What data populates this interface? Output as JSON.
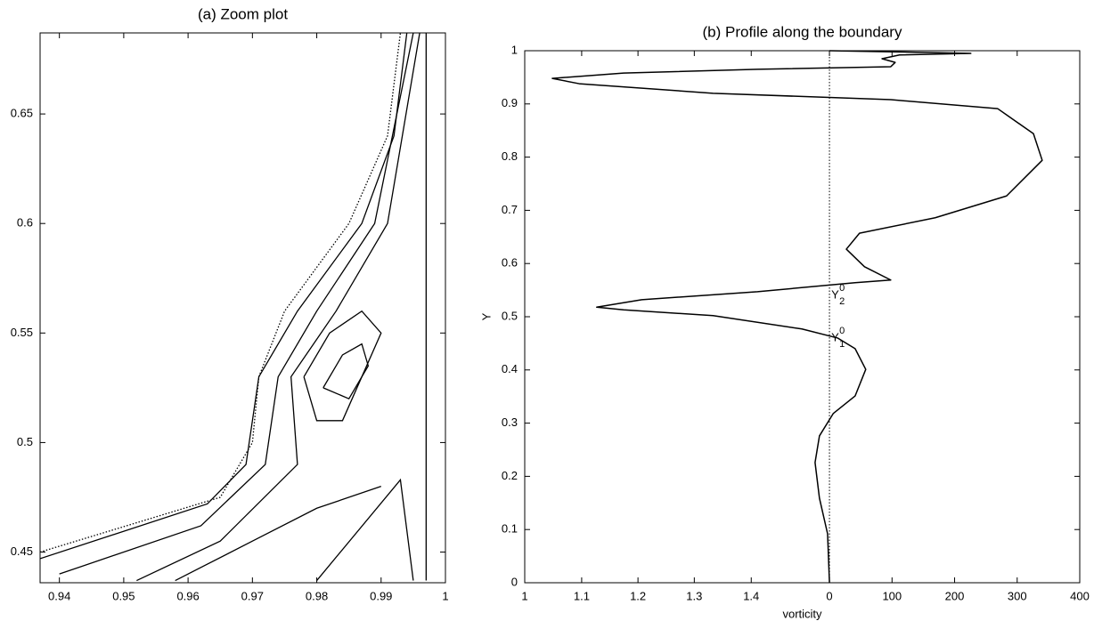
{
  "chart_data": [
    {
      "type": "contour",
      "title": "(a) Zoom plot",
      "xlim": [
        0.937,
        1.0
      ],
      "xticks": [
        0.94,
        0.95,
        0.96,
        0.97,
        0.98,
        0.99,
        1
      ],
      "ylim": [
        0.436,
        0.687
      ],
      "yticks": [
        0.45,
        0.5,
        0.55,
        0.6,
        0.65
      ],
      "color": "#000000",
      "contours": [
        {
          "style": "dotted",
          "x": [
            0.937,
            0.965,
            0.97,
            0.971,
            0.975,
            0.985,
            0.991,
            0.993
          ],
          "y": [
            0.45,
            0.475,
            0.5,
            0.53,
            0.56,
            0.6,
            0.64,
            0.687
          ]
        },
        {
          "style": "solid",
          "x": [
            0.937,
            0.963,
            0.969,
            0.971,
            0.977,
            0.987,
            0.992,
            0.994
          ],
          "y": [
            0.447,
            0.472,
            0.49,
            0.53,
            0.56,
            0.6,
            0.64,
            0.687
          ]
        },
        {
          "style": "solid",
          "x": [
            0.94,
            0.962,
            0.972,
            0.974,
            0.98,
            0.989,
            0.995
          ],
          "y": [
            0.44,
            0.462,
            0.49,
            0.53,
            0.56,
            0.6,
            0.687
          ]
        },
        {
          "style": "solid",
          "x": [
            0.952,
            0.965,
            0.977,
            0.976,
            0.983,
            0.991,
            0.996
          ],
          "y": [
            0.437,
            0.455,
            0.49,
            0.53,
            0.56,
            0.6,
            0.687
          ]
        },
        {
          "style": "solid",
          "x": [
            0.958,
            0.97,
            0.98,
            0.99
          ],
          "y": [
            0.437,
            0.455,
            0.47,
            0.48
          ]
        },
        {
          "style": "solid",
          "x": [
            0.978,
            0.982,
            0.987,
            0.99,
            0.987,
            0.984,
            0.98,
            0.978
          ],
          "y": [
            0.53,
            0.55,
            0.56,
            0.55,
            0.53,
            0.51,
            0.51,
            0.53
          ]
        },
        {
          "style": "solid",
          "x": [
            0.981,
            0.984,
            0.987,
            0.988,
            0.985,
            0.981
          ],
          "y": [
            0.525,
            0.54,
            0.545,
            0.535,
            0.52,
            0.525
          ]
        },
        {
          "style": "solid",
          "x": [
            0.98,
            0.993,
            0.995
          ],
          "y": [
            0.437,
            0.483,
            0.437
          ]
        },
        {
          "style": "solid",
          "x": [
            0.997,
            0.997
          ],
          "y": [
            0.437,
            0.687
          ]
        }
      ]
    },
    {
      "type": "line",
      "title": "(b) Profile along the boundary",
      "xlabel": "vorticity",
      "ylabel": "Y",
      "xlim": [
        -487,
        400
      ],
      "xticks": [
        {
          "value": -487,
          "label": "1"
        },
        {
          "value": -396,
          "label": "1.1"
        },
        {
          "value": -306,
          "label": "1.2"
        },
        {
          "value": -216,
          "label": "1.3"
        },
        {
          "value": -125,
          "label": "1.4"
        },
        0,
        100,
        200,
        300,
        400
      ],
      "ylim": [
        0,
        1
      ],
      "yticks": [
        0,
        0.1,
        0.2,
        0.3,
        0.4,
        0.5,
        0.6,
        0.7,
        0.8,
        0.9,
        1
      ],
      "color": "#000000",
      "vline": 0,
      "x": [
        0,
        -3,
        -16,
        -23,
        -16,
        6,
        41,
        58,
        41,
        13,
        -44,
        -186,
        -329,
        -372,
        -300,
        -115,
        41,
        98,
        56,
        27,
        48,
        169,
        283,
        340,
        326,
        269,
        98,
        -186,
        -400,
        -443,
        -329,
        -115,
        98,
        105,
        84,
        112,
        226,
        98,
        0
      ],
      "y": [
        0,
        0.092,
        0.159,
        0.226,
        0.276,
        0.318,
        0.351,
        0.401,
        0.44,
        0.46,
        0.477,
        0.502,
        0.513,
        0.518,
        0.532,
        0.547,
        0.564,
        0.569,
        0.594,
        0.627,
        0.657,
        0.686,
        0.727,
        0.794,
        0.844,
        0.891,
        0.908,
        0.92,
        0.938,
        0.948,
        0.958,
        0.965,
        0.97,
        0.978,
        0.985,
        0.992,
        0.995,
        0.998,
        1.0
      ],
      "annotations": [
        {
          "text": "Y",
          "sup": "0",
          "sub": "2",
          "x": 3,
          "y": 0.54
        },
        {
          "text": "Y",
          "sup": "0",
          "sub": "1",
          "x": 3,
          "y": 0.46
        }
      ]
    }
  ]
}
